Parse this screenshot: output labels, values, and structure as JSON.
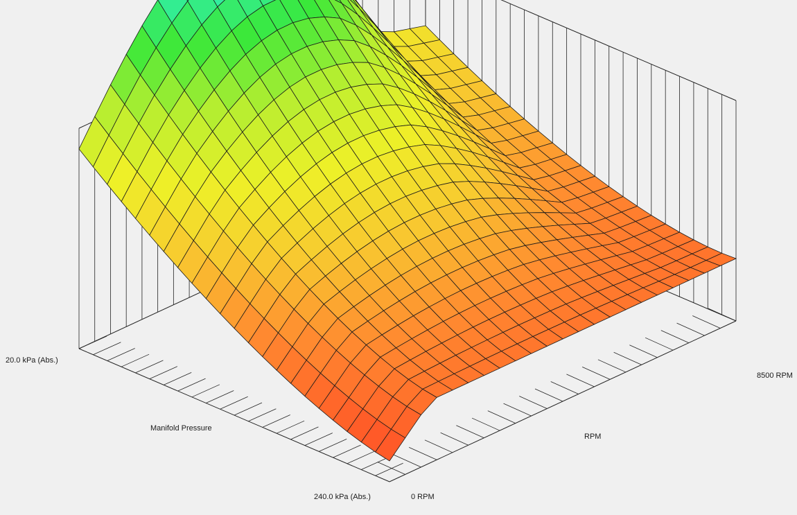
{
  "chart_data": {
    "type": "surface",
    "x_axis": {
      "label": "RPM",
      "min_label": "0 RPM",
      "max_label": "8500 RPM",
      "min": 0,
      "max": 8500
    },
    "y_axis": {
      "label": "Manifold Pressure",
      "min_label": "20.0 kPa (Abs.)",
      "max_label": "240.0 kPa (Abs.)",
      "min": 20,
      "max": 240
    },
    "grid": true,
    "colormap": [
      "#ff5a28",
      "#ff8a30",
      "#f8c830",
      "#eef028",
      "#b8ee30",
      "#3ae83a",
      "#2ff0c4"
    ],
    "surface_rows_top_to_bottom_pressure": 23,
    "surface_cols_rpm": 23,
    "z_relative_levels_sample": {
      "rows_pressure_low_to_high": [
        [
          1.0,
          0.97,
          0.95,
          0.9,
          0.83,
          0.76,
          0.7,
          0.65,
          0.6,
          0.56,
          0.53,
          0.5,
          0.48,
          0.45
        ],
        [
          0.92,
          0.9,
          0.88,
          0.84,
          0.78,
          0.72,
          0.66,
          0.62,
          0.58,
          0.54,
          0.51,
          0.49,
          0.47,
          0.44
        ],
        [
          0.78,
          0.76,
          0.74,
          0.71,
          0.67,
          0.63,
          0.59,
          0.56,
          0.53,
          0.5,
          0.48,
          0.46,
          0.44,
          0.42
        ],
        [
          0.55,
          0.55,
          0.55,
          0.54,
          0.52,
          0.5,
          0.48,
          0.46,
          0.44,
          0.43,
          0.41,
          0.4,
          0.39,
          0.38
        ],
        [
          0.3,
          0.32,
          0.34,
          0.34,
          0.34,
          0.33,
          0.32,
          0.31,
          0.3,
          0.3,
          0.29,
          0.29,
          0.28,
          0.28
        ],
        [
          0.12,
          0.14,
          0.16,
          0.17,
          0.18,
          0.18,
          0.18,
          0.18,
          0.18,
          0.18,
          0.18,
          0.18,
          0.18,
          0.18
        ]
      ]
    }
  }
}
